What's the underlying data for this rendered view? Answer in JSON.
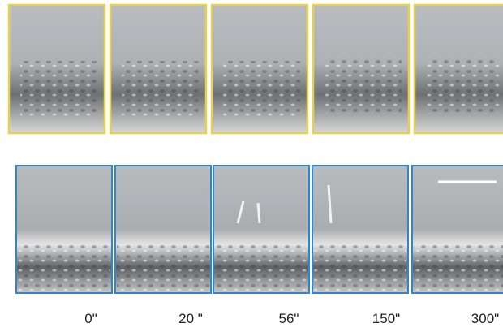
{
  "time_labels": [
    "0\"",
    "20 \"",
    "56\"",
    "150\"",
    "300\""
  ]
}
